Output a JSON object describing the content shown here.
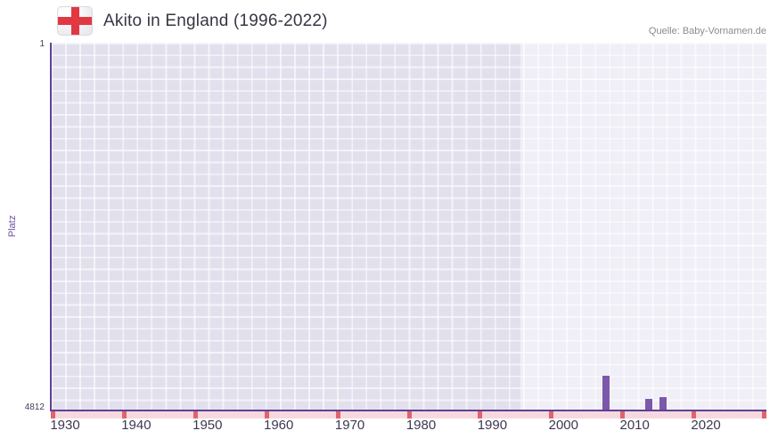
{
  "header": {
    "title": "Akito in England (1996-2022)",
    "source": "Quelle: Baby-Vornamen.de",
    "flag_icon": "england-flag-icon"
  },
  "chart_data": {
    "type": "bar",
    "title": "Akito in England (1996-2022)",
    "xlabel": "",
    "ylabel": "Platz",
    "y_axis": {
      "min": 1,
      "max": 4812,
      "inverted": true,
      "tick_labels": [
        "1",
        "4812"
      ]
    },
    "x_axis": {
      "min": 1928,
      "max": 2028.5,
      "ticks": [
        1930,
        1940,
        1950,
        1960,
        1970,
        1980,
        1990,
        2000,
        2010,
        2020
      ]
    },
    "highlight_period": {
      "start": 1994,
      "end": 2028.5
    },
    "bars": [
      {
        "year": 2006,
        "rank": 4370
      },
      {
        "year": 2012,
        "rank": 4670
      },
      {
        "year": 2014,
        "rank": 4650
      }
    ],
    "strip_tick_years": [
      1928,
      1938,
      1948,
      1958,
      1968,
      1978,
      1988,
      1998,
      2008,
      2018,
      2028
    ],
    "grid": true,
    "legend": "none",
    "colors": {
      "bar": "#7c58ab",
      "axis": "#5e4194",
      "plot_bg": "#e3e0ee",
      "grid_line": "#f5f3fa",
      "highlight": "rgba(255,255,255,0.45)",
      "strip_bg": "#f6d9de",
      "strip_tick": "#e2626f",
      "flag_cross": "#e23842"
    }
  }
}
